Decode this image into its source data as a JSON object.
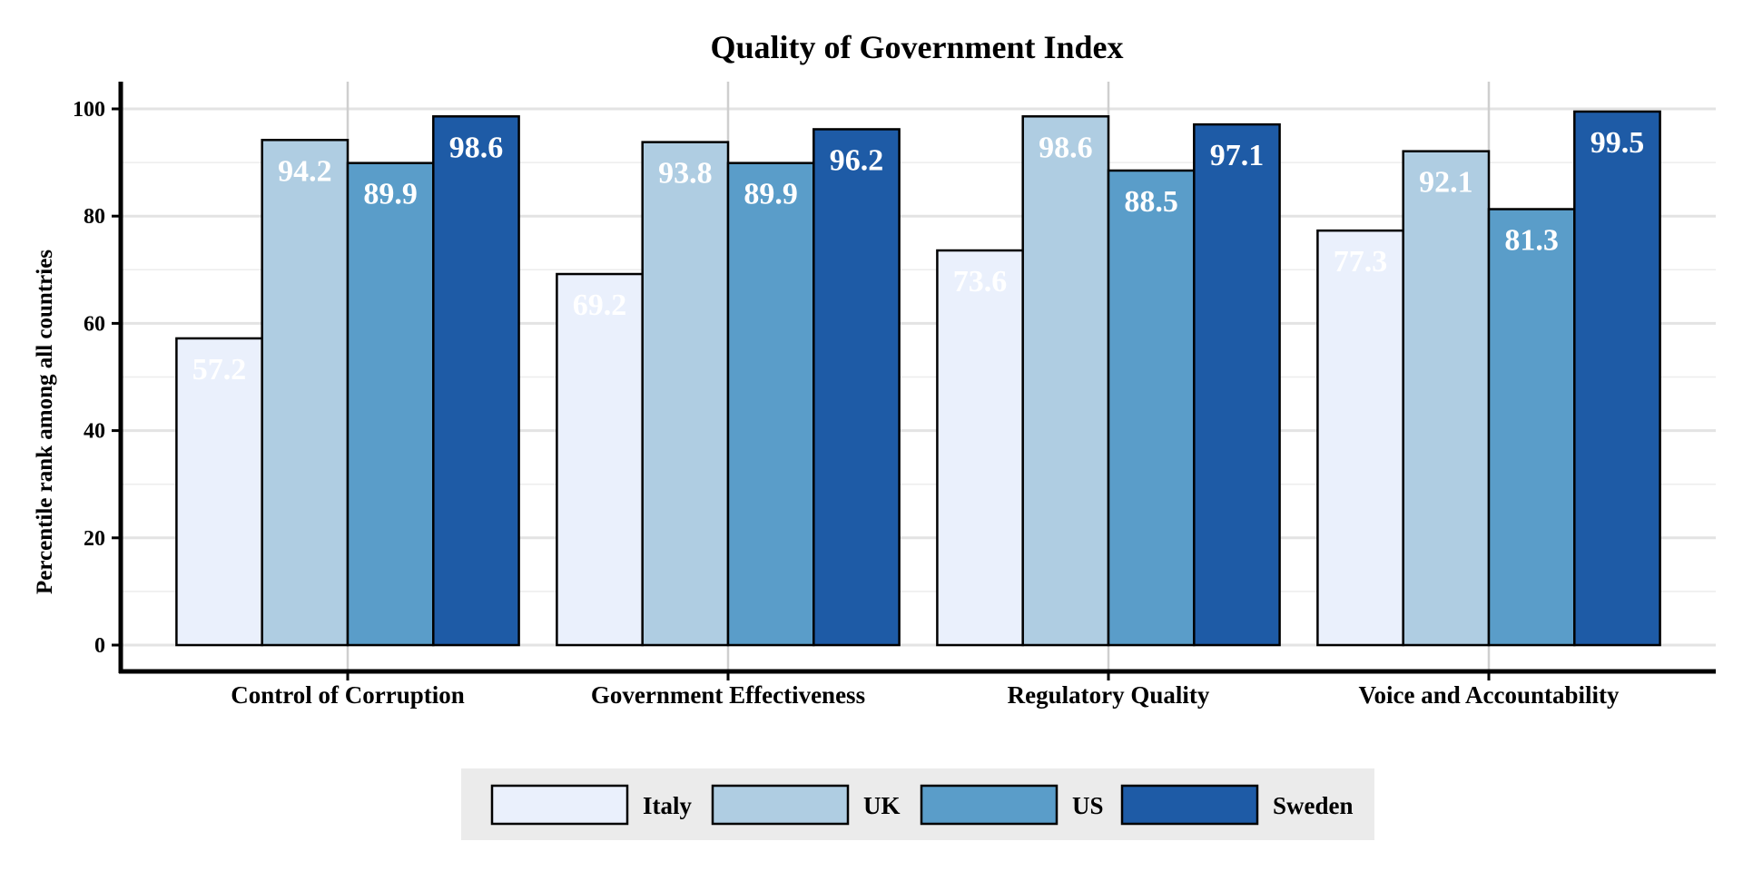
{
  "chart_data": {
    "type": "bar",
    "title": "Quality of Government Index",
    "xlabel": "",
    "ylabel": "Percentile rank among all countries",
    "ylim": [
      0,
      105
    ],
    "yticks": [
      0,
      20,
      40,
      60,
      80,
      100
    ],
    "grid": true,
    "legend_position": "bottom",
    "categories": [
      "Control of Corruption",
      "Government Effectiveness",
      "Regulatory Quality",
      "Voice and Accountability"
    ],
    "series": [
      {
        "name": "Italy",
        "color": "#eaf0fc",
        "values": [
          57.2,
          69.2,
          73.6,
          77.3
        ]
      },
      {
        "name": "UK",
        "color": "#afcde2",
        "values": [
          94.2,
          93.8,
          98.6,
          92.1
        ]
      },
      {
        "name": "US",
        "color": "#5a9dc9",
        "values": [
          89.9,
          89.9,
          88.5,
          81.3
        ]
      },
      {
        "name": "Sweden",
        "color": "#1e5ba6",
        "values": [
          98.6,
          96.2,
          97.1,
          99.5
        ]
      }
    ]
  }
}
